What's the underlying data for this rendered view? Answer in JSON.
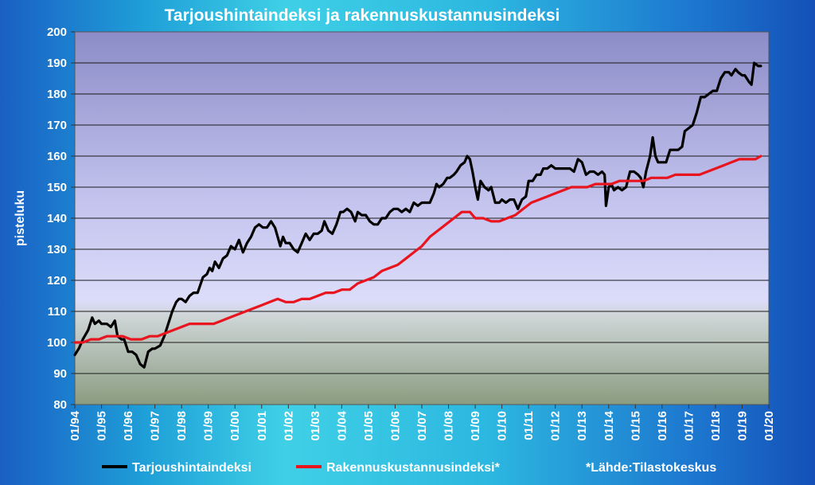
{
  "chart_data": {
    "type": "line",
    "title": "Tarjoushintaindeksi ja rakennuskustannusindeksi",
    "xlabel": "",
    "ylabel": "pisteluku",
    "ylim": [
      80,
      200
    ],
    "yticks": [
      80,
      90,
      100,
      110,
      120,
      130,
      140,
      150,
      160,
      170,
      180,
      190,
      200
    ],
    "xlim": [
      1994.0,
      2020.0
    ],
    "xtick_labels": [
      "01/94",
      "01/95",
      "01/96",
      "01/97",
      "01/98",
      "01/99",
      "01/00",
      "01/01",
      "01/02",
      "01/03",
      "01/04",
      "01/05",
      "01/06",
      "01/07",
      "01/08",
      "01/09",
      "01/10",
      "01/11",
      "01/12",
      "01/13",
      "01/14",
      "01/15",
      "01/16",
      "01/17",
      "01/18",
      "01/19",
      "01/20"
    ],
    "grid": true,
    "legend_position": "bottom",
    "source_note": "*Lähde:Tilastokeskus",
    "series": [
      {
        "name": "Tarjoushintaindeksi",
        "color": "#000000",
        "points": [
          [
            1994.0,
            96
          ],
          [
            1994.15,
            98
          ],
          [
            1994.3,
            101
          ],
          [
            1994.5,
            104
          ],
          [
            1994.65,
            108
          ],
          [
            1994.75,
            106
          ],
          [
            1994.9,
            107
          ],
          [
            1995.0,
            106
          ],
          [
            1995.2,
            106
          ],
          [
            1995.35,
            105
          ],
          [
            1995.5,
            107
          ],
          [
            1995.6,
            102
          ],
          [
            1995.75,
            101
          ],
          [
            1995.85,
            101
          ],
          [
            1996.0,
            97
          ],
          [
            1996.15,
            97
          ],
          [
            1996.3,
            96
          ],
          [
            1996.45,
            93
          ],
          [
            1996.6,
            92
          ],
          [
            1996.75,
            97
          ],
          [
            1996.9,
            98
          ],
          [
            1997.0,
            98
          ],
          [
            1997.2,
            99
          ],
          [
            1997.35,
            102
          ],
          [
            1997.5,
            106
          ],
          [
            1997.65,
            110
          ],
          [
            1997.8,
            113
          ],
          [
            1997.9,
            114
          ],
          [
            1998.0,
            114
          ],
          [
            1998.15,
            113
          ],
          [
            1998.3,
            115
          ],
          [
            1998.45,
            116
          ],
          [
            1998.6,
            116
          ],
          [
            1998.8,
            121
          ],
          [
            1998.95,
            122
          ],
          [
            1999.05,
            124
          ],
          [
            1999.15,
            123
          ],
          [
            1999.25,
            126
          ],
          [
            1999.4,
            124
          ],
          [
            1999.55,
            127
          ],
          [
            1999.7,
            128
          ],
          [
            1999.85,
            131
          ],
          [
            2000.0,
            130
          ],
          [
            2000.15,
            133
          ],
          [
            2000.3,
            129
          ],
          [
            2000.45,
            132
          ],
          [
            2000.6,
            134
          ],
          [
            2000.75,
            137
          ],
          [
            2000.9,
            138
          ],
          [
            2001.05,
            137
          ],
          [
            2001.2,
            137
          ],
          [
            2001.35,
            139
          ],
          [
            2001.5,
            137
          ],
          [
            2001.6,
            134
          ],
          [
            2001.7,
            131
          ],
          [
            2001.8,
            134
          ],
          [
            2001.9,
            132
          ],
          [
            2002.05,
            132
          ],
          [
            2002.2,
            130
          ],
          [
            2002.35,
            129
          ],
          [
            2002.5,
            132
          ],
          [
            2002.65,
            135
          ],
          [
            2002.8,
            133
          ],
          [
            2002.95,
            135
          ],
          [
            2003.1,
            135
          ],
          [
            2003.25,
            136
          ],
          [
            2003.35,
            139
          ],
          [
            2003.5,
            136
          ],
          [
            2003.65,
            135
          ],
          [
            2003.8,
            138
          ],
          [
            2003.95,
            142
          ],
          [
            2004.05,
            142
          ],
          [
            2004.2,
            143
          ],
          [
            2004.35,
            142
          ],
          [
            2004.5,
            139
          ],
          [
            2004.6,
            142
          ],
          [
            2004.75,
            141
          ],
          [
            2004.9,
            141
          ],
          [
            2005.05,
            139
          ],
          [
            2005.2,
            138
          ],
          [
            2005.35,
            138
          ],
          [
            2005.5,
            140
          ],
          [
            2005.65,
            140
          ],
          [
            2005.8,
            142
          ],
          [
            2005.95,
            143
          ],
          [
            2006.1,
            143
          ],
          [
            2006.25,
            142
          ],
          [
            2006.4,
            143
          ],
          [
            2006.55,
            142
          ],
          [
            2006.7,
            145
          ],
          [
            2006.85,
            144
          ],
          [
            2007.0,
            145
          ],
          [
            2007.15,
            145
          ],
          [
            2007.3,
            145
          ],
          [
            2007.45,
            148
          ],
          [
            2007.55,
            151
          ],
          [
            2007.65,
            150
          ],
          [
            2007.8,
            151
          ],
          [
            2007.95,
            153
          ],
          [
            2008.05,
            153
          ],
          [
            2008.2,
            154
          ],
          [
            2008.3,
            155
          ],
          [
            2008.45,
            157
          ],
          [
            2008.6,
            158
          ],
          [
            2008.7,
            160
          ],
          [
            2008.8,
            159
          ],
          [
            2008.9,
            155
          ],
          [
            2009.0,
            150
          ],
          [
            2009.1,
            146
          ],
          [
            2009.2,
            152
          ],
          [
            2009.35,
            150
          ],
          [
            2009.5,
            149
          ],
          [
            2009.6,
            150
          ],
          [
            2009.75,
            145
          ],
          [
            2009.9,
            145
          ],
          [
            2010.0,
            146
          ],
          [
            2010.15,
            145
          ],
          [
            2010.3,
            146
          ],
          [
            2010.45,
            146
          ],
          [
            2010.6,
            143
          ],
          [
            2010.75,
            146
          ],
          [
            2010.9,
            147
          ],
          [
            2011.0,
            152
          ],
          [
            2011.15,
            152
          ],
          [
            2011.3,
            154
          ],
          [
            2011.45,
            154
          ],
          [
            2011.55,
            156
          ],
          [
            2011.7,
            156
          ],
          [
            2011.85,
            157
          ],
          [
            2012.0,
            156
          ],
          [
            2012.2,
            156
          ],
          [
            2012.4,
            156
          ],
          [
            2012.55,
            156
          ],
          [
            2012.7,
            155
          ],
          [
            2012.85,
            159
          ],
          [
            2013.0,
            158
          ],
          [
            2013.15,
            154
          ],
          [
            2013.3,
            155
          ],
          [
            2013.45,
            155
          ],
          [
            2013.6,
            154
          ],
          [
            2013.75,
            155
          ],
          [
            2013.85,
            154
          ],
          [
            2013.9,
            144
          ],
          [
            2014.0,
            150
          ],
          [
            2014.1,
            151
          ],
          [
            2014.2,
            149
          ],
          [
            2014.35,
            150
          ],
          [
            2014.5,
            149
          ],
          [
            2014.65,
            150
          ],
          [
            2014.8,
            155
          ],
          [
            2014.95,
            155
          ],
          [
            2015.1,
            154
          ],
          [
            2015.2,
            153
          ],
          [
            2015.3,
            150
          ],
          [
            2015.4,
            155
          ],
          [
            2015.55,
            160
          ],
          [
            2015.65,
            166
          ],
          [
            2015.75,
            160
          ],
          [
            2015.85,
            158
          ],
          [
            2016.0,
            158
          ],
          [
            2016.15,
            158
          ],
          [
            2016.3,
            162
          ],
          [
            2016.45,
            162
          ],
          [
            2016.6,
            162
          ],
          [
            2016.75,
            163
          ],
          [
            2016.85,
            168
          ],
          [
            2017.0,
            169
          ],
          [
            2017.15,
            170
          ],
          [
            2017.3,
            174
          ],
          [
            2017.45,
            179
          ],
          [
            2017.6,
            179
          ],
          [
            2017.75,
            180
          ],
          [
            2017.9,
            181
          ],
          [
            2018.05,
            181
          ],
          [
            2018.2,
            185
          ],
          [
            2018.35,
            187
          ],
          [
            2018.5,
            187
          ],
          [
            2018.6,
            186
          ],
          [
            2018.75,
            188
          ],
          [
            2018.85,
            187
          ],
          [
            2019.0,
            186
          ],
          [
            2019.1,
            186
          ],
          [
            2019.25,
            184
          ],
          [
            2019.35,
            183
          ],
          [
            2019.45,
            190
          ],
          [
            2019.6,
            189
          ],
          [
            2019.7,
            189
          ]
        ]
      },
      {
        "name": "Rakennuskustannusindeksi*",
        "color": "#e8141e",
        "points": [
          [
            1994.0,
            100
          ],
          [
            1994.3,
            100
          ],
          [
            1994.6,
            101
          ],
          [
            1994.9,
            101
          ],
          [
            1995.2,
            102
          ],
          [
            1995.5,
            102
          ],
          [
            1995.8,
            102
          ],
          [
            1996.1,
            101
          ],
          [
            1996.3,
            101
          ],
          [
            1996.5,
            101
          ],
          [
            1996.8,
            102
          ],
          [
            1997.1,
            102
          ],
          [
            1997.4,
            103
          ],
          [
            1997.7,
            104
          ],
          [
            1998.0,
            105
          ],
          [
            1998.3,
            106
          ],
          [
            1998.6,
            106
          ],
          [
            1998.9,
            106
          ],
          [
            1999.2,
            106
          ],
          [
            1999.5,
            107
          ],
          [
            1999.8,
            108
          ],
          [
            2000.1,
            109
          ],
          [
            2000.4,
            110
          ],
          [
            2000.7,
            111
          ],
          [
            2001.0,
            112
          ],
          [
            2001.3,
            113
          ],
          [
            2001.6,
            114
          ],
          [
            2001.9,
            113
          ],
          [
            2002.2,
            113
          ],
          [
            2002.5,
            114
          ],
          [
            2002.8,
            114
          ],
          [
            2003.1,
            115
          ],
          [
            2003.4,
            116
          ],
          [
            2003.7,
            116
          ],
          [
            2004.0,
            117
          ],
          [
            2004.3,
            117
          ],
          [
            2004.6,
            119
          ],
          [
            2004.9,
            120
          ],
          [
            2005.2,
            121
          ],
          [
            2005.5,
            123
          ],
          [
            2005.8,
            124
          ],
          [
            2006.1,
            125
          ],
          [
            2006.4,
            127
          ],
          [
            2006.7,
            129
          ],
          [
            2007.0,
            131
          ],
          [
            2007.3,
            134
          ],
          [
            2007.6,
            136
          ],
          [
            2007.9,
            138
          ],
          [
            2008.2,
            140
          ],
          [
            2008.5,
            142
          ],
          [
            2008.8,
            142
          ],
          [
            2009.0,
            140
          ],
          [
            2009.3,
            140
          ],
          [
            2009.6,
            139
          ],
          [
            2009.9,
            139
          ],
          [
            2010.2,
            140
          ],
          [
            2010.5,
            141
          ],
          [
            2010.8,
            143
          ],
          [
            2011.1,
            145
          ],
          [
            2011.4,
            146
          ],
          [
            2011.7,
            147
          ],
          [
            2012.0,
            148
          ],
          [
            2012.3,
            149
          ],
          [
            2012.6,
            150
          ],
          [
            2012.9,
            150
          ],
          [
            2013.2,
            150
          ],
          [
            2013.5,
            151
          ],
          [
            2013.8,
            151
          ],
          [
            2014.1,
            151
          ],
          [
            2014.4,
            152
          ],
          [
            2014.7,
            152
          ],
          [
            2015.0,
            152
          ],
          [
            2015.3,
            152
          ],
          [
            2015.6,
            153
          ],
          [
            2015.9,
            153
          ],
          [
            2016.2,
            153
          ],
          [
            2016.5,
            154
          ],
          [
            2016.8,
            154
          ],
          [
            2017.1,
            154
          ],
          [
            2017.4,
            154
          ],
          [
            2017.7,
            155
          ],
          [
            2018.0,
            156
          ],
          [
            2018.3,
            157
          ],
          [
            2018.6,
            158
          ],
          [
            2018.9,
            159
          ],
          [
            2019.2,
            159
          ],
          [
            2019.5,
            159
          ],
          [
            2019.7,
            160
          ]
        ]
      }
    ]
  }
}
